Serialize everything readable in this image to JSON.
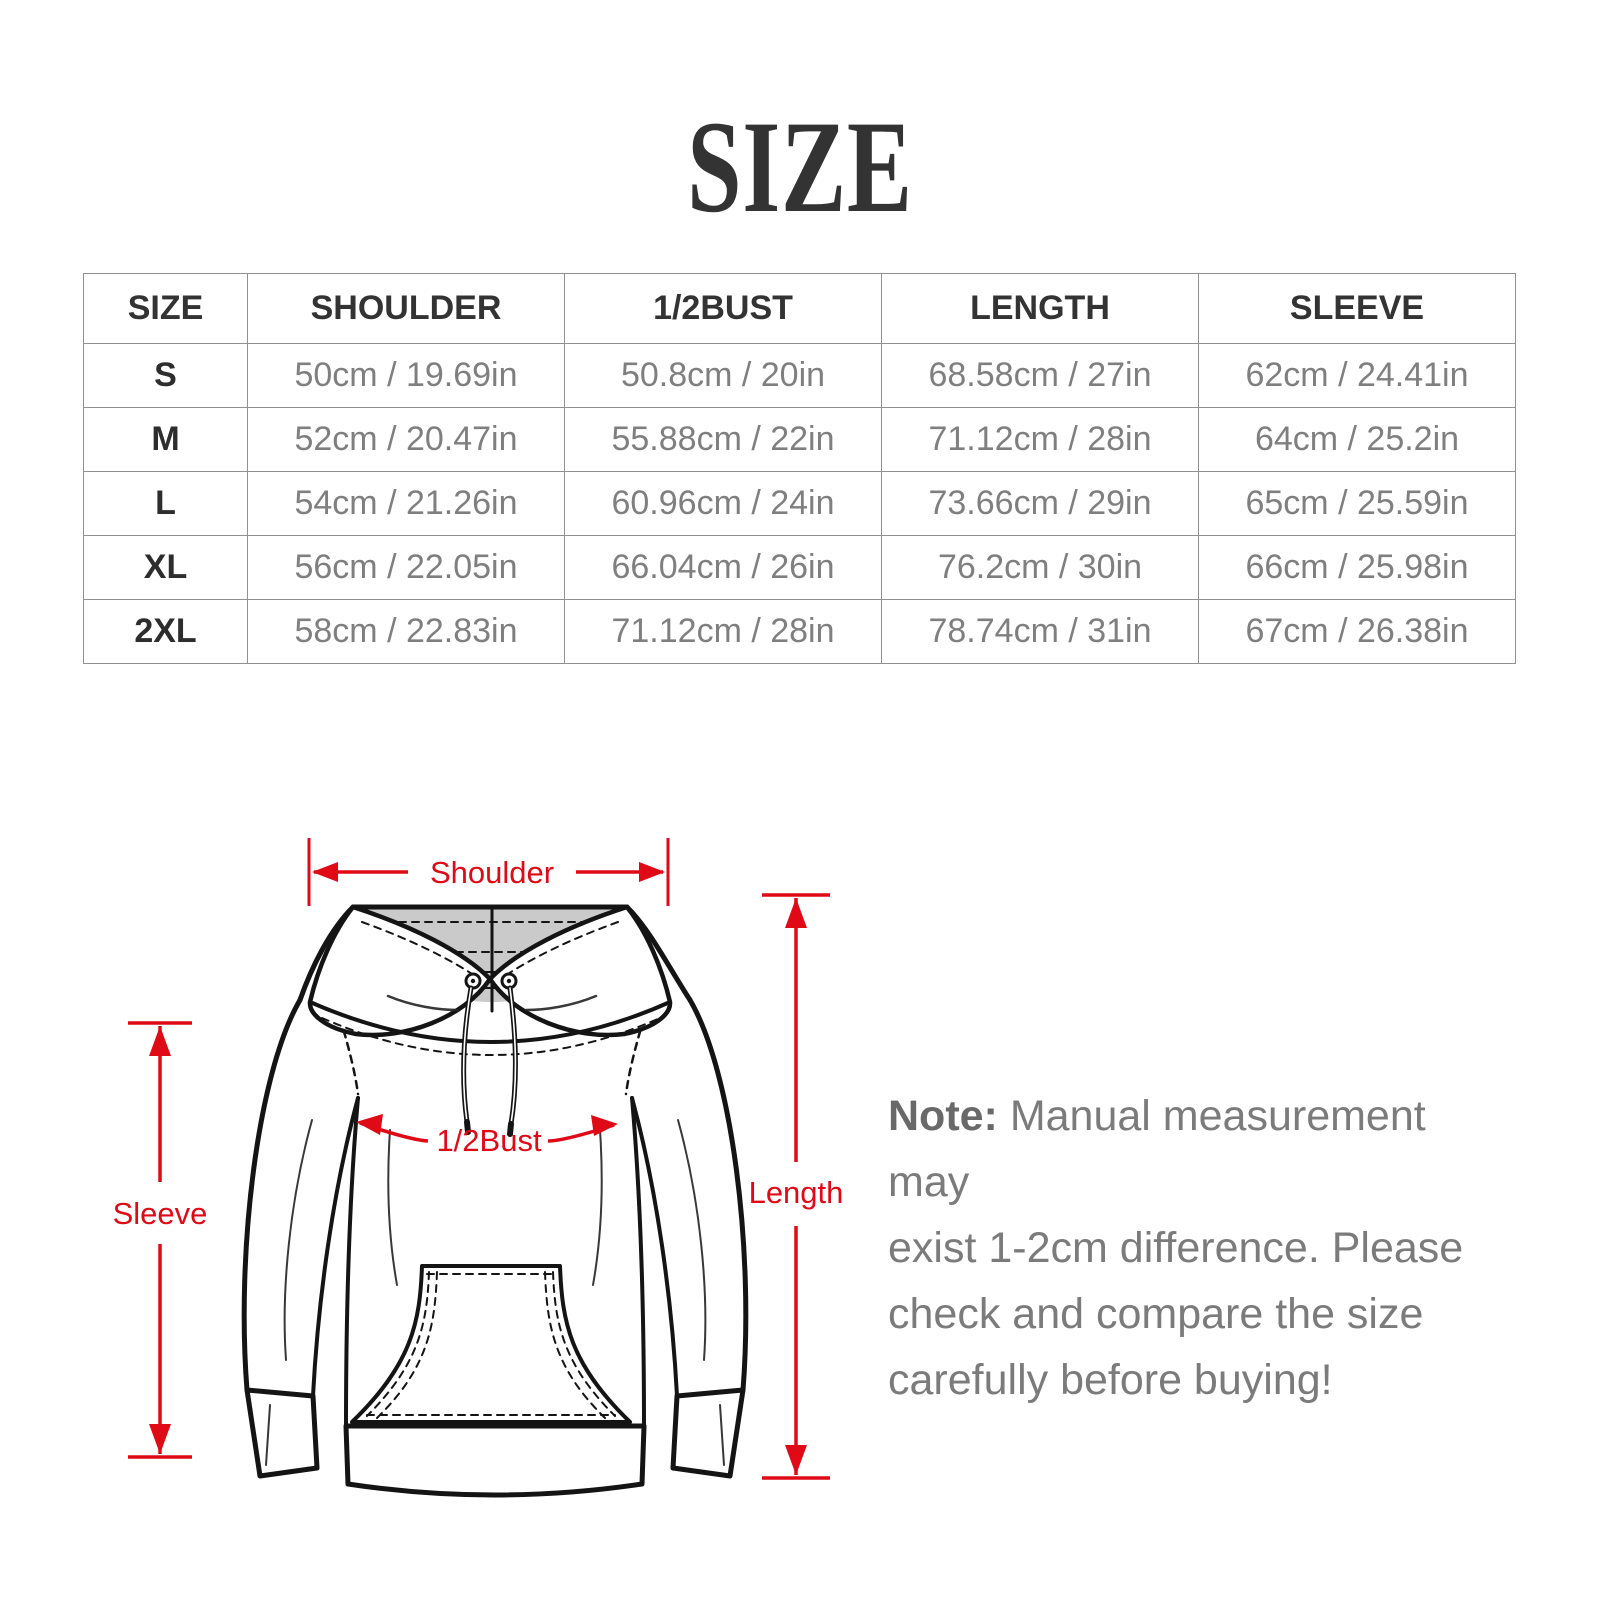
{
  "title": "SIZE",
  "table": {
    "columns": [
      "SIZE",
      "SHOULDER",
      "1/2BUST",
      "LENGTH",
      "SLEEVE"
    ],
    "rows": [
      {
        "size": "S",
        "values": [
          "50cm / 19.69in",
          "50.8cm / 20in",
          "68.58cm / 27in",
          "62cm / 24.41in"
        ]
      },
      {
        "size": "M",
        "values": [
          "52cm / 20.47in",
          "55.88cm / 22in",
          "71.12cm / 28in",
          "64cm / 25.2in"
        ]
      },
      {
        "size": "L",
        "values": [
          "54cm / 21.26in",
          "60.96cm / 24in",
          "73.66cm / 29in",
          "65cm / 25.59in"
        ]
      },
      {
        "size": "XL",
        "values": [
          "56cm / 22.05in",
          "66.04cm / 26in",
          "76.2cm / 30in",
          "66cm / 25.98in"
        ]
      },
      {
        "size": "2XL",
        "values": [
          "58cm / 22.83in",
          "71.12cm / 28in",
          "78.74cm / 31in",
          "67cm / 26.38in"
        ]
      }
    ]
  },
  "diagram": {
    "labels": {
      "shoulder": "Shoulder",
      "half_bust": "1/2Bust",
      "length": "Length",
      "sleeve": "Sleeve"
    },
    "colors": {
      "measure": "#e00a16",
      "line": "#141414",
      "hood_interior": "#cacaca"
    }
  },
  "note": {
    "prefix": "Note:",
    "lines": [
      "Manual measurement may",
      "exist 1-2cm difference. Please",
      "check and compare the size",
      "carefully before buying!"
    ]
  },
  "colors": {
    "title": "#333333",
    "header_text": "#333333",
    "cell_text": "#7f7f7f",
    "border": "#909090",
    "note_text": "#7b7b7b",
    "background": "#ffffff"
  }
}
